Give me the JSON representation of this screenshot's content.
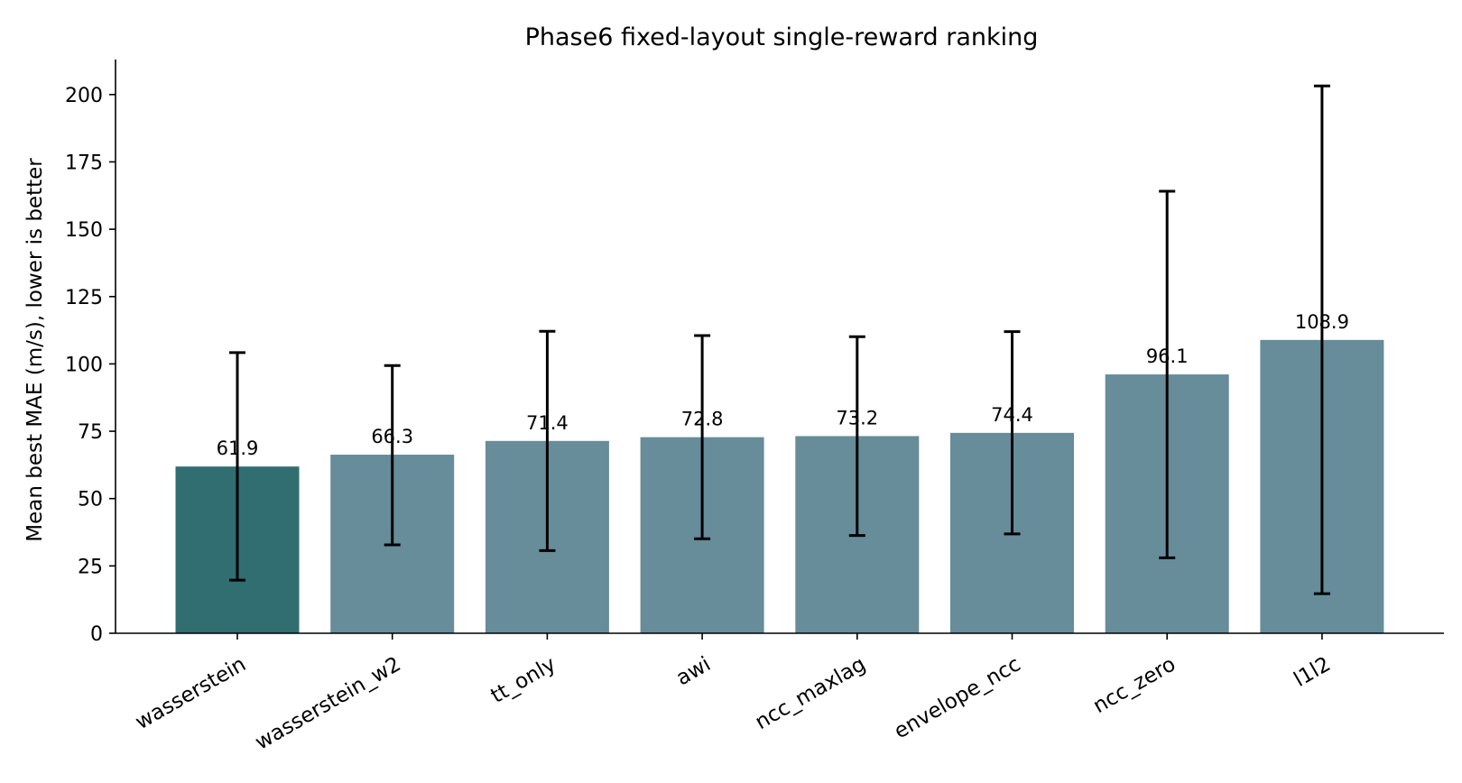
{
  "chart_data": {
    "type": "bar",
    "title": "Phase6 fixed-layout single-reward ranking",
    "xlabel": "",
    "ylabel": "Mean best MAE (m/s), lower is better",
    "categories": [
      "wasserstein",
      "wasserstein_w2",
      "tt_only",
      "awi",
      "ncc_maxlag",
      "envelope_ncc",
      "ncc_zero",
      "l1l2"
    ],
    "values": [
      61.9,
      66.3,
      71.4,
      72.8,
      73.2,
      74.4,
      96.1,
      108.9
    ],
    "value_labels": [
      "61.9",
      "66.3",
      "71.4",
      "72.8",
      "73.2",
      "74.4",
      "96.1",
      "108.9"
    ],
    "error_low": [
      19.7,
      32.8,
      30.7,
      35.1,
      36.3,
      36.9,
      28.0,
      14.7
    ],
    "error_high": [
      104.2,
      99.4,
      112.1,
      110.5,
      110.1,
      112.0,
      164.1,
      203.2
    ],
    "ylim": [
      0,
      213
    ],
    "yticks": [
      0,
      25,
      50,
      75,
      100,
      125,
      150,
      175,
      200
    ],
    "ytick_labels": [
      "0",
      "25",
      "50",
      "75",
      "100",
      "125",
      "150",
      "175",
      "200"
    ],
    "highlight_index": 0,
    "colors": {
      "highlight": "#306e72",
      "bar": "#678c9a",
      "errorbar": "#000000",
      "axis": "#000000"
    },
    "grid": false,
    "legend": "none"
  }
}
